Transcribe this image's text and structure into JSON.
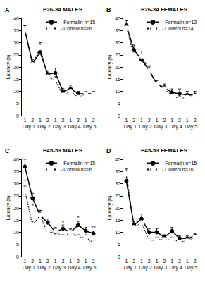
{
  "chart_data": [
    {
      "type": "line",
      "panel": "A",
      "title": "P26-34 MALES",
      "y_label": "Latency (s)",
      "categories": [
        "1",
        "2",
        "1",
        "2",
        "1",
        "2",
        "1",
        "2",
        "1",
        "2"
      ],
      "day_labels": [
        "Day 1",
        "Day 2",
        "Day 3",
        "Day 4",
        "Day 5"
      ],
      "ylim": [
        0,
        40
      ],
      "yticks": [
        0,
        5,
        10,
        15,
        20,
        25,
        30,
        35,
        40
      ],
      "grid": false,
      "legend": "upper right",
      "series": [
        {
          "name": "- Formalin n=15",
          "color": "#000000",
          "marker": "circle",
          "line_style": "solid",
          "values": [
            35,
            21.5,
            26,
            17,
            17.5,
            10,
            11,
            9,
            9,
            9
          ],
          "errors": [
            2,
            1.5,
            2,
            1.5,
            2,
            1.2,
            1.5,
            1,
            1,
            1
          ]
        },
        {
          "name": "- Control n=16",
          "color": "#000000",
          "marker": "open_circle",
          "line_style": "dotted",
          "values": [
            35,
            21,
            28,
            16,
            14.5,
            8.5,
            10,
            7.5,
            9,
            9
          ],
          "errors": [
            2,
            1.5,
            2,
            1.5,
            1.5,
            1,
            1.2,
            1,
            1,
            1
          ]
        }
      ]
    },
    {
      "type": "line",
      "panel": "B",
      "title": "P26-34 FEMALES",
      "y_label": "Latency (s)",
      "categories": [
        "1",
        "2",
        "1",
        "2",
        "1",
        "2",
        "1",
        "2",
        "1",
        "2"
      ],
      "day_labels": [
        "Day 1",
        "Day 2",
        "Day 3",
        "Day 4",
        "Day 5"
      ],
      "ylim": [
        0,
        40
      ],
      "yticks": [
        0,
        5,
        10,
        15,
        20,
        25,
        30,
        35,
        40
      ],
      "grid": false,
      "legend": "upper right",
      "series": [
        {
          "name": "- Formalin n=12",
          "color": "#000000",
          "marker": "circle",
          "line_style": "solid",
          "values": [
            37,
            27,
            23,
            18.5,
            13,
            11.5,
            9.5,
            9,
            8.5,
            8.5
          ],
          "errors": [
            2,
            2,
            2,
            2,
            1.5,
            1.5,
            1.5,
            2,
            1.5,
            1.5
          ]
        },
        {
          "name": "- Control n=14",
          "color": "#000000",
          "marker": "open_circle",
          "line_style": "dotted",
          "values": [
            36,
            25,
            24.5,
            18.5,
            13,
            11,
            8,
            7,
            7.5,
            8
          ],
          "errors": [
            2,
            2,
            2,
            1.5,
            1.5,
            1.5,
            1,
            1,
            1,
            1
          ]
        }
      ]
    },
    {
      "type": "line",
      "panel": "C",
      "title": "P45-53 MALES",
      "y_label": "Latency (s)",
      "categories": [
        "1",
        "2",
        "1",
        "2",
        "1",
        "2",
        "1",
        "2",
        "1",
        "2"
      ],
      "day_labels": [
        "Day 1",
        "Day 2",
        "Day 3",
        "Day 4",
        "Day 5"
      ],
      "ylim": [
        0,
        40
      ],
      "yticks": [
        0,
        5,
        10,
        15,
        20,
        25,
        30,
        35,
        40
      ],
      "grid": false,
      "legend": "upper right",
      "series": [
        {
          "name": "- Formalin n=15",
          "color": "#000000",
          "marker": "circle",
          "line_style": "solid",
          "values": [
            37,
            24,
            17,
            14,
            10,
            11.5,
            10,
            13,
            10.5,
            9.5
          ],
          "errors": [
            3,
            2,
            2,
            1.5,
            1.5,
            1.5,
            1.5,
            1.5,
            1.5,
            1
          ]
        },
        {
          "name": "- Control n=16",
          "color": "#000000",
          "marker": "open_circle",
          "line_style": "dotted",
          "values": [
            27,
            13,
            17,
            9.5,
            10.5,
            8,
            10,
            8,
            8,
            5.5
          ],
          "errors": [
            2,
            1.5,
            2,
            1,
            1.5,
            1,
            1,
            1,
            1,
            0.8
          ]
        }
      ],
      "annotations": [
        {
          "index": 0,
          "y": 31,
          "text": "*"
        },
        {
          "index": 1,
          "y": 21,
          "text": "*"
        },
        {
          "index": 5,
          "y": 14,
          "text": "*"
        },
        {
          "index": 7,
          "y": 16,
          "text": "*"
        },
        {
          "index": 9,
          "y": 12,
          "text": "**"
        }
      ]
    },
    {
      "type": "line",
      "panel": "D",
      "title": "P45-53 FEMALES",
      "y_label": "Latency (s)",
      "categories": [
        "1",
        "2",
        "1",
        "2",
        "1",
        "2",
        "1",
        "2",
        "1",
        "2"
      ],
      "day_labels": [
        "Day 1",
        "Day 2",
        "Day 3",
        "Day 4",
        "Day 5"
      ],
      "ylim": [
        0,
        40
      ],
      "yticks": [
        0,
        5,
        10,
        15,
        20,
        25,
        30,
        35,
        40
      ],
      "grid": false,
      "legend": "upper right",
      "series": [
        {
          "name": "- Formalin n=15",
          "color": "#000000",
          "marker": "circle",
          "line_style": "solid",
          "values": [
            31,
            13,
            15.5,
            10,
            10,
            8,
            10.5,
            7.5,
            7.5,
            8.5
          ],
          "errors": [
            2.5,
            1.5,
            2,
            1.5,
            1.5,
            1,
            1.5,
            1,
            1,
            1
          ]
        },
        {
          "name": "- Control n=16",
          "color": "#000000",
          "marker": "open_circle",
          "line_style": "dotted",
          "values": [
            34,
            12,
            14,
            6.5,
            7,
            7,
            7,
            6,
            6.5,
            8
          ],
          "errors": [
            2,
            1.5,
            2,
            1,
            1,
            1,
            1,
            1,
            1,
            1
          ]
        }
      ]
    }
  ]
}
